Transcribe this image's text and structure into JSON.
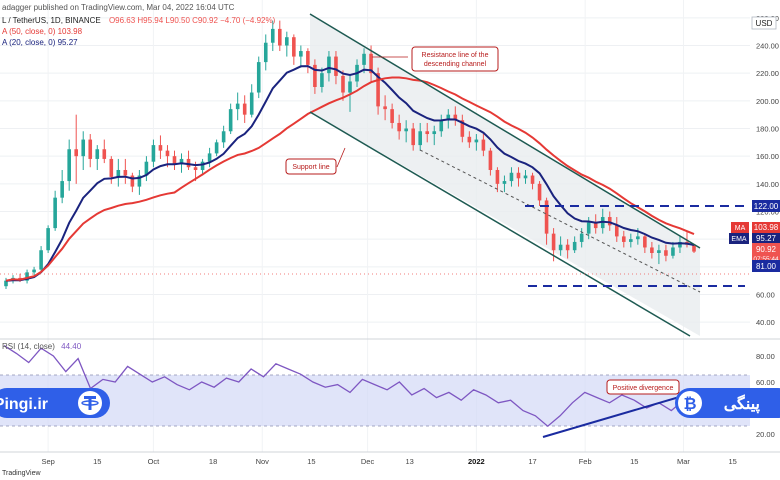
{
  "header": {
    "line1": "adagger published on TradingView.com, Mar 04, 2022 16:04 UTC",
    "line2_symbol": "L / TetherUS, 1D, BINANCE",
    "line2_ohlc": "O96.63  H95.94  L90.50  C90.92  −4.70 (−4.92%)",
    "line3": "A (50, close, 0)  103.98",
    "line4": "A (20, close, 0)  95.27"
  },
  "price_axis": {
    "currency": "USD",
    "ticks": [
      "260.00",
      "240.00",
      "220.00",
      "200.00",
      "180.00",
      "160.00",
      "140.00",
      "120.00",
      "100.00",
      "80.00",
      "60.00",
      "40.00"
    ],
    "badges": {
      "resistance": "122.00",
      "ma_tag": "MA",
      "ma_value": "103.98",
      "ema_tag": "EMA",
      "ema_value": "95.27",
      "last_price": "90.92",
      "countdown": "07:55:44",
      "support": "81.00"
    }
  },
  "rsi_panel": {
    "label": "RSI (14, close)",
    "value": "44.40",
    "ticks": [
      "80.00",
      "60.00",
      "40.00",
      "20.00"
    ]
  },
  "time_axis": {
    "labels": [
      "Sep",
      "15",
      "Oct",
      "18",
      "Nov",
      "15",
      "Dec",
      "13",
      "2022",
      "17",
      "Feb",
      "15",
      "Mar",
      "15"
    ]
  },
  "annotations": {
    "resistance_note": "Resistance line of the descending channel",
    "support_note": "Support line",
    "divergence_note": "Positive divergence"
  },
  "branding": {
    "site": "Pingi.ir",
    "persian_brand": "پینگی",
    "footer": "TradingView"
  },
  "colors": {
    "up_candle": "#26a69a",
    "down_candle": "#ef5350",
    "ma50": "#e53935",
    "ema20": "#1a237e",
    "rsi_line": "#7e57c2",
    "channel": "#1e5a52",
    "dashed_levels": "#1a2ba0",
    "brand_blue": "#2f5fe8"
  },
  "chart_data": {
    "type": "candlestick",
    "x_start": "2021-08-20",
    "x_end": "2022-03-04",
    "candles": [
      [
        "2021-08-20",
        66,
        72,
        64,
        70
      ],
      [
        "2021-08-22",
        70,
        74,
        68,
        72
      ],
      [
        "2021-08-24",
        72,
        75,
        69,
        70
      ],
      [
        "2021-08-26",
        70,
        78,
        68,
        76
      ],
      [
        "2021-08-28",
        76,
        80,
        74,
        78
      ],
      [
        "2021-08-30",
        78,
        95,
        77,
        92
      ],
      [
        "2021-09-01",
        92,
        110,
        90,
        108
      ],
      [
        "2021-09-03",
        108,
        135,
        106,
        130
      ],
      [
        "2021-09-05",
        130,
        150,
        126,
        142
      ],
      [
        "2021-09-07",
        142,
        172,
        135,
        165
      ],
      [
        "2021-09-09",
        165,
        190,
        140,
        160
      ],
      [
        "2021-09-11",
        160,
        178,
        150,
        172
      ],
      [
        "2021-09-13",
        172,
        176,
        152,
        158
      ],
      [
        "2021-09-15",
        158,
        168,
        150,
        165
      ],
      [
        "2021-09-17",
        165,
        172,
        155,
        158
      ],
      [
        "2021-09-19",
        158,
        160,
        140,
        145
      ],
      [
        "2021-09-21",
        145,
        158,
        138,
        150
      ],
      [
        "2021-09-23",
        150,
        158,
        140,
        146
      ],
      [
        "2021-09-25",
        146,
        148,
        134,
        138
      ],
      [
        "2021-09-27",
        138,
        150,
        132,
        146
      ],
      [
        "2021-09-29",
        146,
        160,
        142,
        156
      ],
      [
        "2021-10-01",
        156,
        172,
        152,
        168
      ],
      [
        "2021-10-03",
        168,
        175,
        158,
        164
      ],
      [
        "2021-10-05",
        164,
        168,
        152,
        160
      ],
      [
        "2021-10-07",
        160,
        164,
        150,
        154
      ],
      [
        "2021-10-09",
        154,
        162,
        148,
        158
      ],
      [
        "2021-10-11",
        158,
        164,
        150,
        152
      ],
      [
        "2021-10-13",
        152,
        156,
        142,
        150
      ],
      [
        "2021-10-15",
        150,
        158,
        146,
        156
      ],
      [
        "2021-10-17",
        156,
        166,
        152,
        162
      ],
      [
        "2021-10-19",
        162,
        172,
        160,
        170
      ],
      [
        "2021-10-21",
        170,
        182,
        166,
        178
      ],
      [
        "2021-10-23",
        178,
        198,
        176,
        194
      ],
      [
        "2021-10-25",
        194,
        206,
        186,
        198
      ],
      [
        "2021-10-27",
        198,
        204,
        184,
        190
      ],
      [
        "2021-10-29",
        190,
        212,
        188,
        206
      ],
      [
        "2021-10-31",
        206,
        232,
        202,
        228
      ],
      [
        "2021-11-02",
        228,
        248,
        222,
        242
      ],
      [
        "2021-11-04",
        242,
        258,
        236,
        252
      ],
      [
        "2021-11-06",
        252,
        258,
        236,
        240
      ],
      [
        "2021-11-08",
        240,
        250,
        232,
        246
      ],
      [
        "2021-11-10",
        246,
        248,
        226,
        232
      ],
      [
        "2021-11-12",
        232,
        240,
        224,
        236
      ],
      [
        "2021-11-14",
        236,
        238,
        220,
        226
      ],
      [
        "2021-11-16",
        226,
        230,
        205,
        210
      ],
      [
        "2021-11-18",
        210,
        224,
        206,
        220
      ],
      [
        "2021-11-20",
        220,
        236,
        214,
        232
      ],
      [
        "2021-11-22",
        232,
        236,
        212,
        218
      ],
      [
        "2021-11-24",
        218,
        222,
        200,
        206
      ],
      [
        "2021-11-26",
        206,
        218,
        192,
        214
      ],
      [
        "2021-11-28",
        214,
        230,
        210,
        226
      ],
      [
        "2021-11-30",
        226,
        238,
        220,
        234
      ],
      [
        "2021-12-02",
        234,
        240,
        214,
        220
      ],
      [
        "2021-12-04",
        220,
        224,
        190,
        196
      ],
      [
        "2021-12-06",
        196,
        204,
        186,
        194
      ],
      [
        "2021-12-08",
        194,
        198,
        180,
        184
      ],
      [
        "2021-12-10",
        184,
        190,
        172,
        178
      ],
      [
        "2021-12-12",
        178,
        186,
        170,
        180
      ],
      [
        "2021-12-14",
        180,
        184,
        164,
        168
      ],
      [
        "2021-12-16",
        168,
        184,
        164,
        178
      ],
      [
        "2021-12-18",
        178,
        184,
        170,
        176
      ],
      [
        "2021-12-20",
        176,
        182,
        168,
        178
      ],
      [
        "2021-12-22",
        178,
        190,
        174,
        186
      ],
      [
        "2021-12-24",
        186,
        194,
        180,
        190
      ],
      [
        "2021-12-26",
        190,
        196,
        182,
        186
      ],
      [
        "2021-12-28",
        186,
        190,
        170,
        174
      ],
      [
        "2021-12-30",
        174,
        178,
        166,
        170
      ],
      [
        "2022-01-01",
        170,
        176,
        164,
        172
      ],
      [
        "2022-01-03",
        172,
        176,
        160,
        164
      ],
      [
        "2022-01-05",
        164,
        166,
        146,
        150
      ],
      [
        "2022-01-07",
        150,
        152,
        134,
        140
      ],
      [
        "2022-01-09",
        140,
        146,
        134,
        142
      ],
      [
        "2022-01-11",
        142,
        152,
        138,
        148
      ],
      [
        "2022-01-13",
        148,
        152,
        138,
        144
      ],
      [
        "2022-01-15",
        144,
        150,
        140,
        146
      ],
      [
        "2022-01-17",
        146,
        148,
        136,
        140
      ],
      [
        "2022-01-19",
        140,
        142,
        124,
        128
      ],
      [
        "2022-01-21",
        128,
        130,
        96,
        104
      ],
      [
        "2022-01-23",
        104,
        108,
        84,
        92
      ],
      [
        "2022-01-25",
        92,
        102,
        88,
        96
      ],
      [
        "2022-01-27",
        96,
        100,
        86,
        92
      ],
      [
        "2022-01-29",
        92,
        102,
        90,
        98
      ],
      [
        "2022-01-31",
        98,
        108,
        94,
        104
      ],
      [
        "2022-02-02",
        104,
        116,
        100,
        112
      ],
      [
        "2022-02-04",
        112,
        118,
        104,
        108
      ],
      [
        "2022-02-06",
        108,
        122,
        104,
        116
      ],
      [
        "2022-02-08",
        116,
        120,
        106,
        110
      ],
      [
        "2022-02-10",
        110,
        116,
        98,
        102
      ],
      [
        "2022-02-12",
        102,
        106,
        94,
        98
      ],
      [
        "2022-02-14",
        98,
        104,
        94,
        100
      ],
      [
        "2022-02-16",
        100,
        108,
        96,
        102
      ],
      [
        "2022-02-18",
        102,
        104,
        90,
        94
      ],
      [
        "2022-02-20",
        94,
        98,
        86,
        90
      ],
      [
        "2022-02-22",
        90,
        96,
        82,
        92
      ],
      [
        "2022-02-24",
        92,
        96,
        84,
        88
      ],
      [
        "2022-02-26",
        88,
        98,
        86,
        94
      ],
      [
        "2022-02-28",
        94,
        102,
        90,
        98
      ],
      [
        "2022-03-02",
        98,
        106,
        94,
        96
      ],
      [
        "2022-03-04",
        96,
        96,
        90,
        91
      ]
    ],
    "ema20_label": "EMA 20",
    "ma50_label": "SMA 50",
    "levels": {
      "resistance": 122,
      "support": 81
    },
    "price_axis_range": [
      30,
      270
    ],
    "rsi_range": [
      10,
      90
    ],
    "rsi_last": 44.4,
    "rsi_points": [
      [
        0,
        88
      ],
      [
        4,
        82
      ],
      [
        8,
        75
      ],
      [
        12,
        86
      ],
      [
        16,
        80
      ],
      [
        20,
        68
      ],
      [
        24,
        78
      ],
      [
        28,
        55
      ],
      [
        32,
        62
      ],
      [
        36,
        60
      ],
      [
        40,
        72
      ],
      [
        44,
        66
      ],
      [
        48,
        60
      ],
      [
        52,
        64
      ],
      [
        56,
        58
      ],
      [
        60,
        54
      ],
      [
        64,
        60
      ],
      [
        68,
        56
      ],
      [
        72,
        63
      ],
      [
        76,
        60
      ],
      [
        80,
        70
      ],
      [
        84,
        64
      ],
      [
        88,
        74
      ],
      [
        92,
        70
      ],
      [
        96,
        66
      ],
      [
        100,
        60
      ],
      [
        104,
        56
      ],
      [
        108,
        58
      ],
      [
        112,
        52
      ],
      [
        116,
        62
      ],
      [
        120,
        58
      ],
      [
        124,
        54
      ],
      [
        128,
        60
      ],
      [
        132,
        50
      ],
      [
        136,
        55
      ],
      [
        140,
        48
      ],
      [
        144,
        52
      ],
      [
        148,
        46
      ],
      [
        152,
        54
      ],
      [
        156,
        50
      ],
      [
        160,
        44
      ],
      [
        164,
        46
      ],
      [
        168,
        38
      ],
      [
        172,
        34
      ],
      [
        176,
        26
      ],
      [
        180,
        34
      ],
      [
        184,
        44
      ],
      [
        188,
        52
      ],
      [
        192,
        48
      ],
      [
        196,
        44
      ],
      [
        200,
        50
      ],
      [
        204,
        46
      ],
      [
        208,
        40
      ],
      [
        212,
        44
      ],
      [
        216,
        38
      ],
      [
        220,
        46
      ],
      [
        224,
        44
      ]
    ]
  }
}
